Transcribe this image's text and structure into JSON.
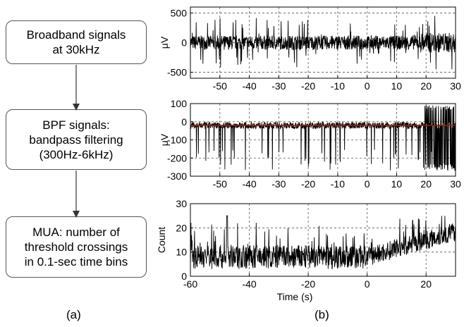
{
  "flowchart": {
    "box1": [
      "Broadband signals",
      "at 30kHz"
    ],
    "box2": [
      "BPF signals:",
      "bandpass filtering",
      "(300Hz-6kHz)"
    ],
    "box3": [
      "MUA: number of",
      "threshold crossings",
      "in 0.1-sec time bins"
    ],
    "caption": "(a)"
  },
  "caption_b": "(b)",
  "colors": {
    "trace": "#000000",
    "threshold": "#d00000",
    "grid": "#555555"
  },
  "chart_data": [
    {
      "type": "line",
      "panel": "top",
      "description_of_trace": "broadband signal, dense noise",
      "ylabel": "μV",
      "xlim": [
        -60,
        30
      ],
      "ylim": [
        -600,
        600
      ],
      "yticks": [
        -500,
        0,
        500
      ],
      "xticks": [
        -50,
        -40,
        -30,
        -20,
        -10,
        0,
        10,
        20,
        30
      ],
      "x_tick_labels": [
        "-50",
        "-40",
        "-30",
        "-20",
        "-10",
        "0",
        "10",
        "20",
        "30"
      ],
      "y_tick_labels": [
        "-500",
        "0",
        "500"
      ],
      "grid": true,
      "trace_range": [
        -450,
        450
      ],
      "noise_amplitude": 120
    },
    {
      "type": "line",
      "panel": "middle",
      "ylabel": "μV",
      "xlim": [
        -60,
        30
      ],
      "ylim": [
        -300,
        100
      ],
      "yticks": [
        -300,
        -200,
        -100,
        0,
        100
      ],
      "xticks": [
        -50,
        -40,
        -30,
        -20,
        -10,
        0,
        10,
        20,
        30
      ],
      "x_tick_labels": [
        "-50",
        "-40",
        "-30",
        "-20",
        "-10",
        "0",
        "10",
        "20",
        "30"
      ],
      "y_tick_labels": [
        "-300",
        "-200",
        "-100",
        "0",
        "100"
      ],
      "grid": true,
      "threshold": -20,
      "spike_min": -270
    },
    {
      "type": "line",
      "panel": "bottom",
      "ylabel": "Count",
      "xlabel": "Time (s)",
      "xlim": [
        -60,
        30
      ],
      "ylim": [
        0,
        30
      ],
      "yticks": [
        0,
        10,
        20,
        30
      ],
      "xticks": [
        -60,
        -40,
        -20,
        0,
        20
      ],
      "x_tick_labels": [
        "-60",
        "-40",
        "-20",
        "0",
        "20"
      ],
      "y_tick_labels": [
        "0",
        "10",
        "20",
        "30"
      ],
      "grid": true,
      "peak_value": 25
    }
  ]
}
